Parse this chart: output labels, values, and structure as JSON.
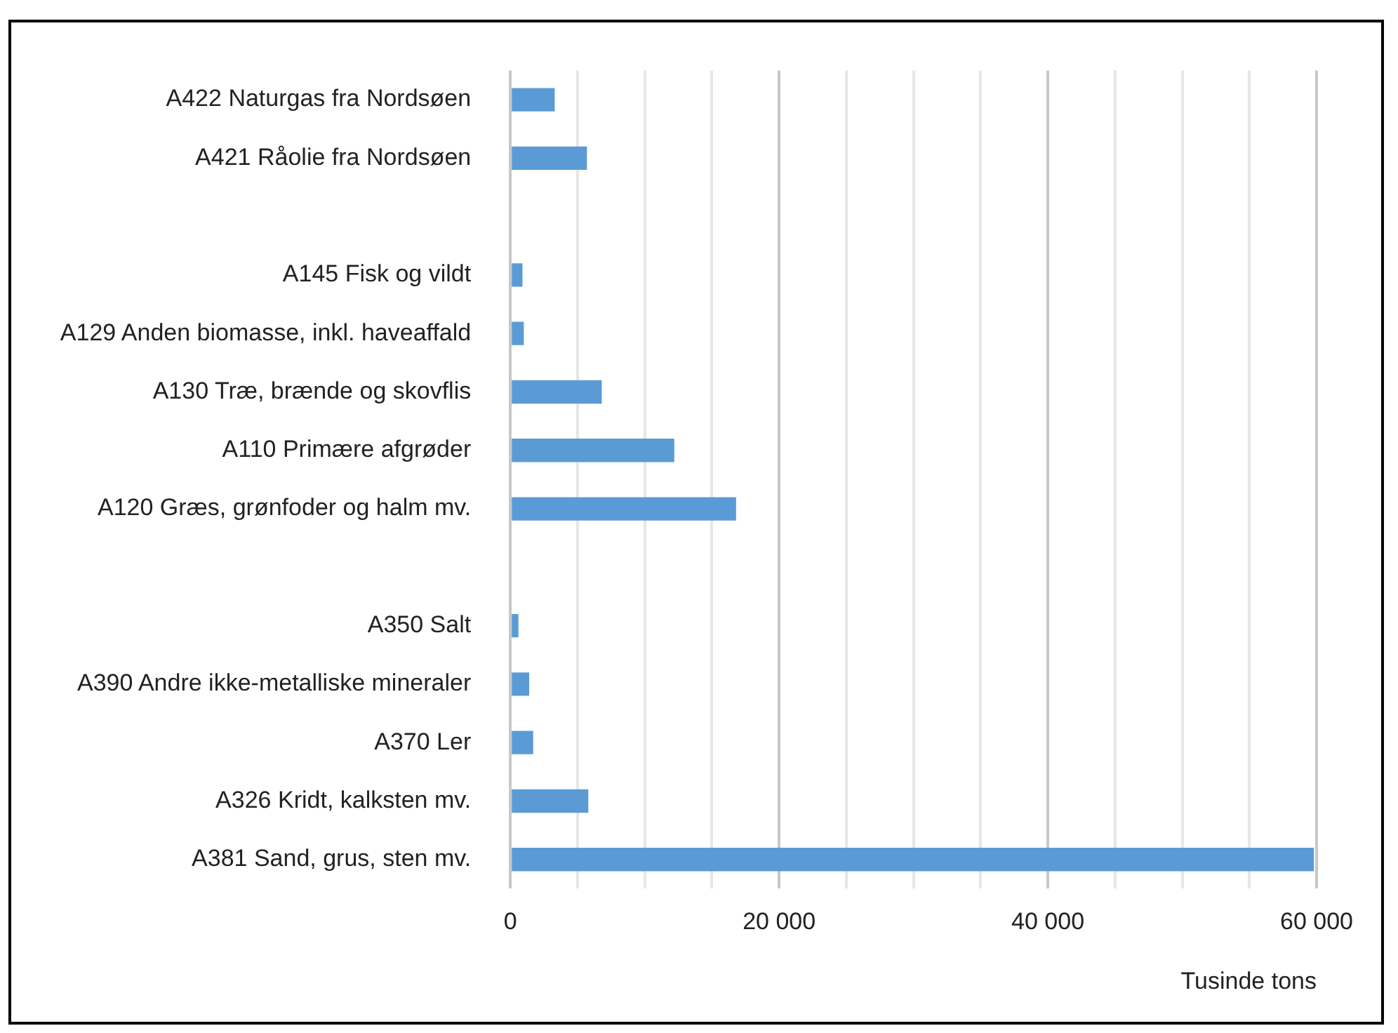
{
  "chart_data": {
    "type": "bar",
    "orientation": "horizontal",
    "categories": [
      "A422 Naturgas fra Nordsøen",
      "A421 Råolie fra Nordsøen",
      null,
      "A145 Fisk og vildt",
      "A129 Anden biomasse, inkl. haveaffald",
      "A130 Træ, brænde og skovflis",
      "A110 Primære afgrøder",
      "A120 Græs, grønfoder og halm mv.",
      null,
      "A350 Salt",
      "A390 Andre ikke-metalliske mineraler",
      "A370 Ler",
      "A326 Kridt, kalksten mv.",
      "A381 Sand, grus, sten mv."
    ],
    "values": [
      3300,
      5700,
      null,
      900,
      1000,
      6800,
      12200,
      16800,
      null,
      600,
      1400,
      1700,
      5800,
      59800
    ],
    "color": "#5b9bd5",
    "xlabel": "Tusinde tons",
    "xlim": [
      0,
      60000
    ],
    "xticks": [
      0,
      {
        "value": 5000,
        "label": null
      },
      {
        "value": 10000,
        "label": null
      },
      {
        "value": 15000,
        "label": null
      },
      {
        "value": 20000,
        "label": "20 000"
      },
      {
        "value": 25000,
        "label": null
      },
      {
        "value": 30000,
        "label": null
      },
      {
        "value": 35000,
        "label": null
      },
      {
        "value": 40000,
        "label": "40 000"
      },
      {
        "value": 45000,
        "label": null
      },
      {
        "value": 50000,
        "label": null
      },
      {
        "value": 55000,
        "label": null
      },
      {
        "value": 60000,
        "label": "60 000"
      }
    ],
    "grid": "x"
  }
}
